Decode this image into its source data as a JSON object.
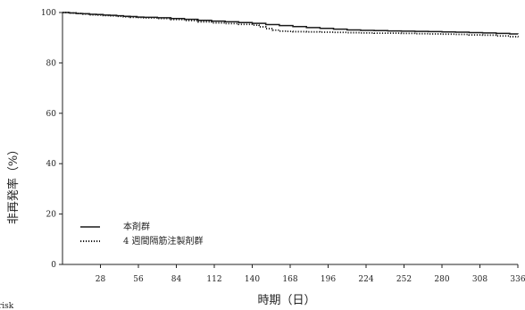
{
  "chart_data": {
    "type": "line",
    "title": "",
    "xlabel": "時期（日）",
    "ylabel": "非再発率（%）",
    "xlim": [
      0,
      336
    ],
    "ylim": [
      0,
      100
    ],
    "x_ticks": [
      28,
      56,
      84,
      112,
      140,
      168,
      196,
      224,
      252,
      280,
      308,
      336
    ],
    "y_ticks": [
      0,
      20,
      40,
      60,
      80,
      100
    ],
    "grid": false,
    "legend_position": "bottom-left",
    "series": [
      {
        "name": "本剤群",
        "style": "solid",
        "color": "#1a1a1a",
        "x": [
          0,
          5,
          10,
          15,
          20,
          25,
          30,
          35,
          40,
          45,
          50,
          55,
          60,
          70,
          80,
          90,
          100,
          110,
          120,
          130,
          140,
          150,
          160,
          170,
          180,
          190,
          200,
          210,
          220,
          230,
          240,
          250,
          260,
          270,
          280,
          290,
          300,
          310,
          320,
          330,
          336
        ],
        "y": [
          100,
          99.8,
          99.6,
          99.5,
          99.3,
          99.2,
          99,
          98.9,
          98.7,
          98.5,
          98.4,
          98.2,
          98.1,
          97.9,
          97.6,
          97.3,
          96.9,
          96.6,
          96.3,
          96,
          95.7,
          95.2,
          94.8,
          94.4,
          94,
          93.7,
          93.4,
          93.1,
          92.9,
          92.8,
          92.7,
          92.6,
          92.5,
          92.4,
          92.3,
          92.2,
          92,
          91.9,
          91.7,
          91.5,
          91.4
        ]
      },
      {
        "name": "4 週間隔筋注製剤群",
        "style": "dotted",
        "color": "#1a1a1a",
        "x": [
          0,
          5,
          10,
          15,
          20,
          25,
          30,
          35,
          40,
          45,
          50,
          55,
          60,
          70,
          80,
          90,
          100,
          110,
          120,
          130,
          140,
          145,
          150,
          155,
          160,
          165,
          170,
          180,
          190,
          200,
          210,
          220,
          230,
          240,
          250,
          260,
          270,
          280,
          290,
          300,
          310,
          320,
          330,
          336
        ],
        "y": [
          100,
          99.8,
          99.6,
          99.4,
          99.1,
          99,
          98.8,
          98.7,
          98.5,
          98.3,
          98.1,
          98,
          97.9,
          97.6,
          97.2,
          96.8,
          96.3,
          95.9,
          95.6,
          95.3,
          95,
          94.3,
          93.6,
          93,
          92.6,
          92.5,
          92.4,
          92.3,
          92.2,
          92.1,
          92,
          91.9,
          91.8,
          91.8,
          91.7,
          91.6,
          91.5,
          91.4,
          91.3,
          91.1,
          91,
          90.7,
          90.4,
          90.2
        ]
      }
    ]
  },
  "edge_text": "risk"
}
